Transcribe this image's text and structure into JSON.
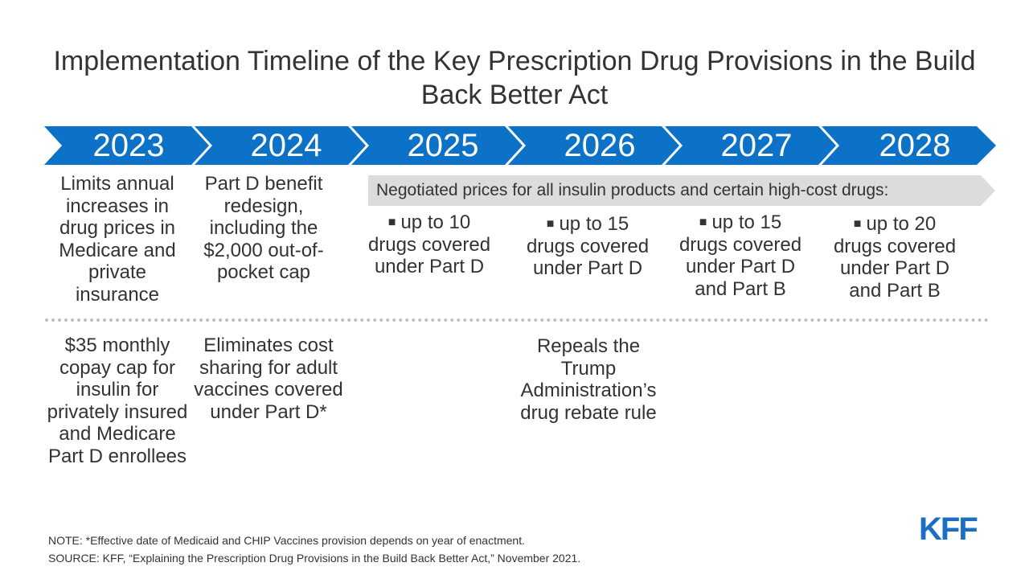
{
  "title": "Implementation Timeline of the Key Prescription Drug Provisions in the Build Back Better Act",
  "years": [
    "2023",
    "2024",
    "2025",
    "2026",
    "2027",
    "2028"
  ],
  "colors": {
    "chevron": "#0b72c8",
    "negotiated_bar": "#dcdcdc",
    "logo": "#1a6fc3"
  },
  "row1": {
    "y2023": "Limits annual increases in drug prices in Medicare and private insurance",
    "y2024": "Part D benefit redesign, including the $2,000 out-of-pocket cap"
  },
  "negotiated": {
    "label": "Negotiated prices for all insulin products and certain high-cost drugs:",
    "bullet_icon": "square-bullet-icon",
    "items": [
      {
        "line1": "up to 10",
        "rest": "drugs covered under Part D"
      },
      {
        "line1": "up to 15",
        "rest": "drugs covered under Part D"
      },
      {
        "line1": "up to 15",
        "rest": "drugs covered under Part D and Part B"
      },
      {
        "line1": "up to 20",
        "rest": "drugs covered under Part D and Part B"
      }
    ]
  },
  "row2": {
    "y2023": "$35 monthly copay cap for insulin for privately insured and Medicare Part D enrollees",
    "y2024": "Eliminates cost sharing for adult vaccines covered under Part D*",
    "y2026": "Repeals the Trump Administration’s drug rebate rule"
  },
  "note": "NOTE: *Effective date of Medicaid and CHIP Vaccines provision depends on year of enactment.",
  "source": "SOURCE: KFF, “Explaining the Prescription Drug Provisions in the Build Back Better Act,” November 2021.",
  "logo": "KFF"
}
